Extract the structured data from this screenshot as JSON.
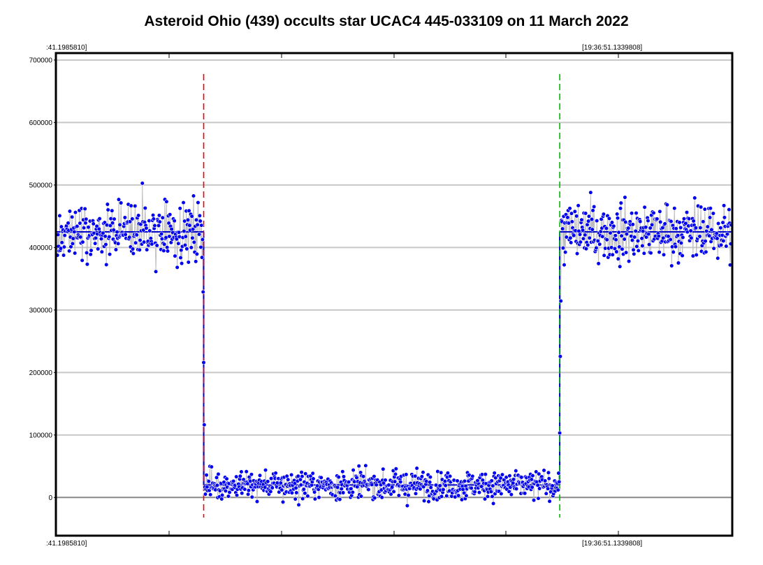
{
  "chart_data": {
    "type": "scatter",
    "title": "Asteroid Ohio (439) occults star UCAC4 445-033109 on 11 March 2022",
    "xlabel": "",
    "ylabel": "",
    "ylim": [
      -60000,
      710000
    ],
    "y_ticks": [
      0,
      100000,
      200000,
      300000,
      400000,
      500000,
      600000,
      700000
    ],
    "y_tick_labels": [
      "0",
      "100000",
      "200000",
      "300000",
      "400000",
      "500000",
      "600000",
      "700000"
    ],
    "time_labels": {
      "top_left": ":41.1985810]",
      "top_right": "[19:36:51.1339808]",
      "bottom_left": ":41.1985810]",
      "bottom_right": "[19:36:51.1339808]"
    },
    "grid": true,
    "frame_count": 1200,
    "disappearance_frame": 262,
    "reappearance_frame": 894,
    "baseline_level": 425000,
    "event_level": 20000,
    "series": [
      {
        "name": "",
        "color": "#0000ee",
        "line_color": "#bbbbbb"
      }
    ],
    "fit_line": {
      "color": "#0000cc"
    },
    "markers": [
      {
        "name": "",
        "color": "#ee0000",
        "style": "dashed"
      },
      {
        "name": "",
        "color": "#00bb00",
        "style": "dashed"
      }
    ]
  }
}
